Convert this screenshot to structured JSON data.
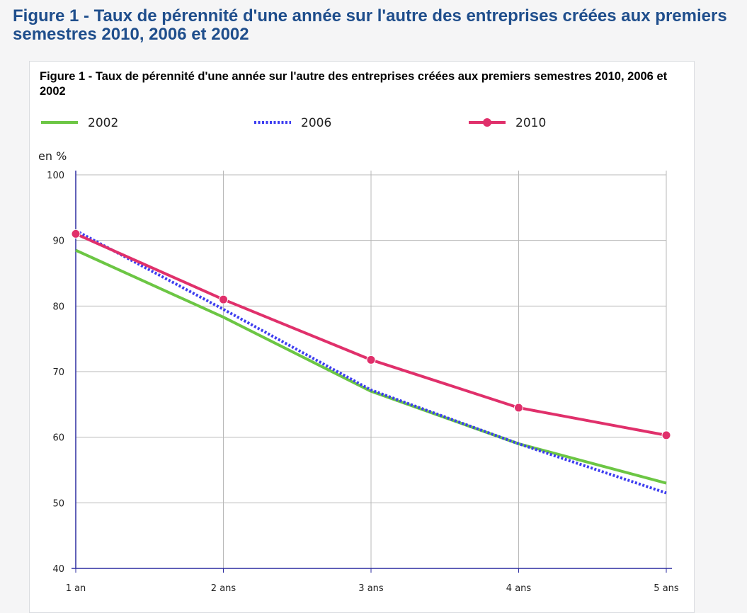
{
  "page": {
    "heading": "Figure 1 - Taux de pérennité d'une année sur l'autre des entreprises créées aux premiers semestres 2010, 2006 et 2002"
  },
  "chart_data": {
    "type": "line",
    "title": "Figure 1 - Taux de pérennité d'une année sur l'autre des entreprises créées aux premiers semestres 2010, 2006 et 2002",
    "unit_label": "en %",
    "categories": [
      "1 an",
      "2 ans",
      "3 ans",
      "4 ans",
      "5 ans"
    ],
    "ylim": [
      40,
      100
    ],
    "yticks": [
      40,
      50,
      60,
      70,
      80,
      90,
      100
    ],
    "grid": true,
    "legend_position": "top",
    "series": [
      {
        "name": "2002",
        "values": [
          88.5,
          78.3,
          67.0,
          59.0,
          53.0
        ],
        "color": "#6cc644",
        "style": "solid"
      },
      {
        "name": "2006",
        "values": [
          91.5,
          79.5,
          67.2,
          59.0,
          51.5
        ],
        "color": "#3d3df0",
        "style": "dotted"
      },
      {
        "name": "2010",
        "values": [
          91.0,
          81.0,
          71.8,
          64.5,
          60.3
        ],
        "color": "#e0306b",
        "style": "solid-markers"
      }
    ]
  }
}
